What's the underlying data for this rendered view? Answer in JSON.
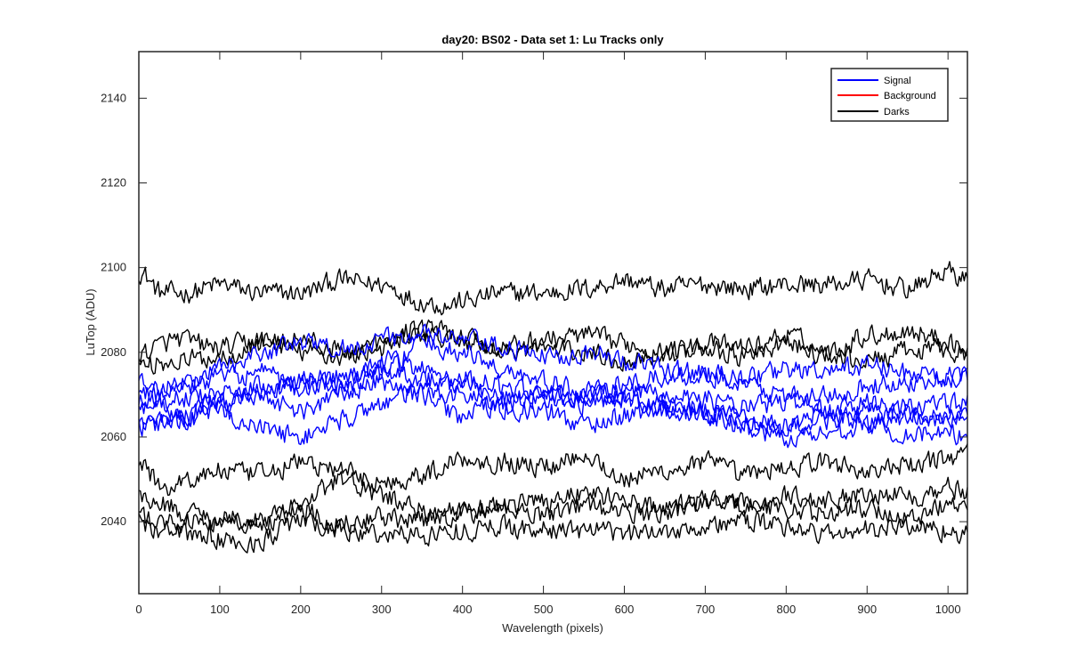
{
  "chart_data": {
    "type": "line",
    "title": "day20: BS02 - Data set 1: Lu Tracks only",
    "xlabel": "Wavelength (pixels)",
    "ylabel": "LuTop (ADU)",
    "xlim": [
      0,
      1024
    ],
    "ylim": [
      2023,
      2151
    ],
    "xticks": [
      0,
      100,
      200,
      300,
      400,
      500,
      600,
      700,
      800,
      900,
      1000
    ],
    "yticks": [
      2040,
      2060,
      2080,
      2100,
      2120,
      2140
    ],
    "grid": false,
    "legend_placement": "top-right",
    "legend": [
      {
        "name": "Signal",
        "color": "#0000ff"
      },
      {
        "name": "Background",
        "color": "#ff0000"
      },
      {
        "name": "Darks",
        "color": "#000000"
      }
    ],
    "noise_amplitude": 2.2,
    "series": [
      {
        "name": "Signal",
        "color": "#0000ff",
        "x": [
          0,
          50,
          100,
          150,
          200,
          250,
          300,
          350,
          400,
          450,
          500,
          550,
          600,
          650,
          700,
          750,
          800,
          850,
          900,
          950,
          1024
        ],
        "y": [
          2068,
          2072,
          2076,
          2080,
          2082,
          2081,
          2083,
          2084,
          2083,
          2081,
          2079,
          2080,
          2078,
          2076,
          2075,
          2074,
          2076,
          2075,
          2077,
          2075,
          2074
        ]
      },
      {
        "name": "Signal",
        "color": "#0000ff",
        "x": [
          0,
          50,
          100,
          150,
          200,
          250,
          300,
          350,
          400,
          450,
          500,
          550,
          600,
          650,
          700,
          750,
          800,
          850,
          900,
          950,
          1024
        ],
        "y": [
          2072,
          2065,
          2068,
          2072,
          2074,
          2072,
          2075,
          2082,
          2080,
          2076,
          2073,
          2071,
          2069,
          2066,
          2066,
          2064,
          2062,
          2064,
          2066,
          2064,
          2065
        ]
      },
      {
        "name": "Signal",
        "color": "#0000ff",
        "x": [
          0,
          50,
          100,
          150,
          200,
          250,
          300,
          350,
          400,
          450,
          500,
          550,
          600,
          650,
          700,
          750,
          800,
          850,
          900,
          950,
          1024
        ],
        "y": [
          2066,
          2069,
          2070,
          2071,
          2073,
          2074,
          2076,
          2074,
          2072,
          2070,
          2069,
          2070,
          2072,
          2074,
          2075,
          2072,
          2070,
          2066,
          2063,
          2061,
          2060
        ]
      },
      {
        "name": "Signal",
        "color": "#0000ff",
        "x": [
          0,
          50,
          100,
          150,
          200,
          250,
          300,
          350,
          400,
          450,
          500,
          550,
          600,
          650,
          700,
          750,
          800,
          850,
          900,
          950,
          1024
        ],
        "y": [
          2064,
          2065,
          2068,
          2070,
          2066,
          2070,
          2073,
          2070,
          2065,
          2068,
          2070,
          2068,
          2069,
          2068,
          2066,
          2064,
          2063,
          2066,
          2068,
          2067,
          2068
        ]
      },
      {
        "name": "Signal",
        "color": "#0000ff",
        "x": [
          0,
          50,
          100,
          150,
          200,
          250,
          300,
          350,
          400,
          450,
          500,
          550,
          600,
          650,
          700,
          750,
          800,
          850,
          900,
          950,
          1024
        ],
        "y": [
          2062,
          2064,
          2066,
          2062,
          2060,
          2064,
          2068,
          2071,
          2070,
          2067,
          2066,
          2063,
          2065,
          2067,
          2065,
          2062,
          2060,
          2061,
          2063,
          2066,
          2064
        ]
      },
      {
        "name": "Signal",
        "color": "#0000ff",
        "x": [
          0,
          50,
          100,
          150,
          200,
          250,
          300,
          350,
          400,
          450,
          500,
          550,
          600,
          650,
          700,
          750,
          800,
          850,
          900,
          950,
          1024
        ],
        "y": [
          2070,
          2072,
          2074,
          2075,
          2071,
          2073,
          2078,
          2076,
          2074,
          2072,
          2070,
          2069,
          2070,
          2071,
          2069,
          2067,
          2068,
          2070,
          2072,
          2073,
          2074
        ]
      },
      {
        "name": "Darks",
        "color": "#000000",
        "x": [
          0,
          30,
          60,
          100,
          150,
          200,
          250,
          300,
          350,
          380,
          400,
          450,
          500,
          550,
          600,
          650,
          700,
          750,
          800,
          850,
          900,
          950,
          1000,
          1024
        ],
        "y": [
          2099,
          2094,
          2094,
          2096,
          2094,
          2094,
          2097,
          2096,
          2092,
          2091,
          2092,
          2094,
          2094,
          2095,
          2097,
          2095,
          2096,
          2095,
          2096,
          2096,
          2097,
          2095,
          2099,
          2097
        ]
      },
      {
        "name": "Darks",
        "color": "#000000",
        "x": [
          0,
          50,
          100,
          150,
          200,
          250,
          300,
          350,
          400,
          450,
          500,
          550,
          600,
          650,
          700,
          750,
          800,
          850,
          900,
          950,
          1000,
          1024
        ],
        "y": [
          2080,
          2083,
          2081,
          2083,
          2080,
          2079,
          2081,
          2084,
          2083,
          2081,
          2083,
          2084,
          2082,
          2080,
          2082,
          2081,
          2084,
          2080,
          2084,
          2085,
          2083,
          2080
        ]
      },
      {
        "name": "Darks",
        "color": "#000000",
        "x": [
          0,
          50,
          100,
          150,
          200,
          250,
          300,
          350,
          400,
          450,
          500,
          550,
          600,
          650,
          700,
          750,
          800,
          850,
          900,
          950,
          1000,
          1024
        ],
        "y": [
          2077,
          2078,
          2079,
          2082,
          2083,
          2080,
          2082,
          2086,
          2084,
          2080,
          2081,
          2080,
          2078,
          2080,
          2081,
          2079,
          2082,
          2079,
          2078,
          2080,
          2081,
          2079
        ]
      },
      {
        "name": "Darks",
        "color": "#000000",
        "x": [
          0,
          30,
          60,
          100,
          150,
          200,
          250,
          300,
          350,
          400,
          450,
          500,
          550,
          600,
          650,
          700,
          750,
          800,
          850,
          900,
          950,
          1000,
          1024
        ],
        "y": [
          2054,
          2048,
          2050,
          2052,
          2051,
          2054,
          2052,
          2049,
          2051,
          2055,
          2054,
          2053,
          2056,
          2050,
          2052,
          2054,
          2051,
          2053,
          2054,
          2052,
          2053,
          2055,
          2057
        ]
      },
      {
        "name": "Darks",
        "color": "#000000",
        "x": [
          0,
          30,
          60,
          100,
          150,
          200,
          250,
          300,
          350,
          400,
          450,
          500,
          550,
          600,
          650,
          700,
          750,
          800,
          850,
          900,
          950,
          1000,
          1024
        ],
        "y": [
          2046,
          2044,
          2042,
          2040,
          2040,
          2044,
          2050,
          2046,
          2043,
          2042,
          2044,
          2045,
          2047,
          2045,
          2043,
          2045,
          2044,
          2046,
          2045,
          2047,
          2046,
          2048,
          2047
        ]
      },
      {
        "name": "Darks",
        "color": "#000000",
        "x": [
          0,
          30,
          60,
          100,
          150,
          200,
          250,
          300,
          350,
          400,
          450,
          500,
          550,
          600,
          650,
          700,
          750,
          800,
          850,
          900,
          950,
          1000,
          1024
        ],
        "y": [
          2041,
          2040,
          2040,
          2041,
          2040,
          2043,
          2040,
          2041,
          2040,
          2042,
          2043,
          2042,
          2044,
          2042,
          2042,
          2045,
          2044,
          2043,
          2042,
          2043,
          2041,
          2044,
          2045
        ]
      },
      {
        "name": "Darks",
        "color": "#000000",
        "x": [
          0,
          30,
          60,
          100,
          130,
          150,
          200,
          250,
          300,
          350,
          400,
          450,
          500,
          550,
          600,
          650,
          700,
          750,
          800,
          850,
          900,
          950,
          1000,
          1024
        ],
        "y": [
          2040,
          2038,
          2037,
          2036,
          2034,
          2036,
          2040,
          2038,
          2037,
          2037,
          2038,
          2039,
          2038,
          2038,
          2037,
          2038,
          2039,
          2040,
          2039,
          2037,
          2038,
          2039,
          2038,
          2037
        ]
      }
    ]
  }
}
